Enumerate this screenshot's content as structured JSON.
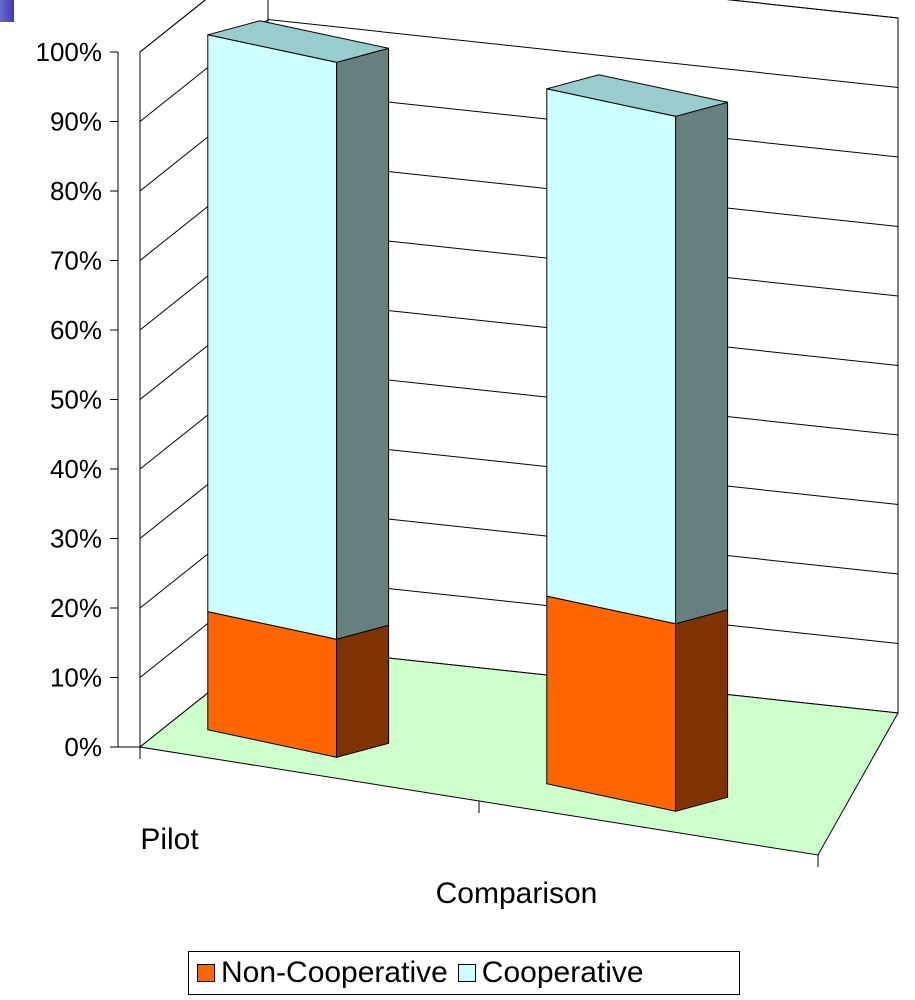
{
  "chart_data": {
    "type": "bar",
    "stacked": true,
    "three_d": true,
    "categories": [
      "Pilot",
      "Comparison"
    ],
    "series": [
      {
        "name": "Non-Cooperative",
        "values": [
          17,
          27
        ],
        "front_color": "#ff6600",
        "side_color": "#7f3300"
      },
      {
        "name": "Cooperative",
        "values": [
          83,
          73
        ],
        "front_color": "#ccffff",
        "side_color": "#668080"
      }
    ],
    "y_ticks": [
      "0%",
      "10%",
      "20%",
      "30%",
      "40%",
      "50%",
      "60%",
      "70%",
      "80%",
      "90%",
      "100%"
    ],
    "ylim": [
      0,
      100
    ],
    "grid": true,
    "legend_position": "bottom",
    "floor_color": "#ccffcc"
  }
}
